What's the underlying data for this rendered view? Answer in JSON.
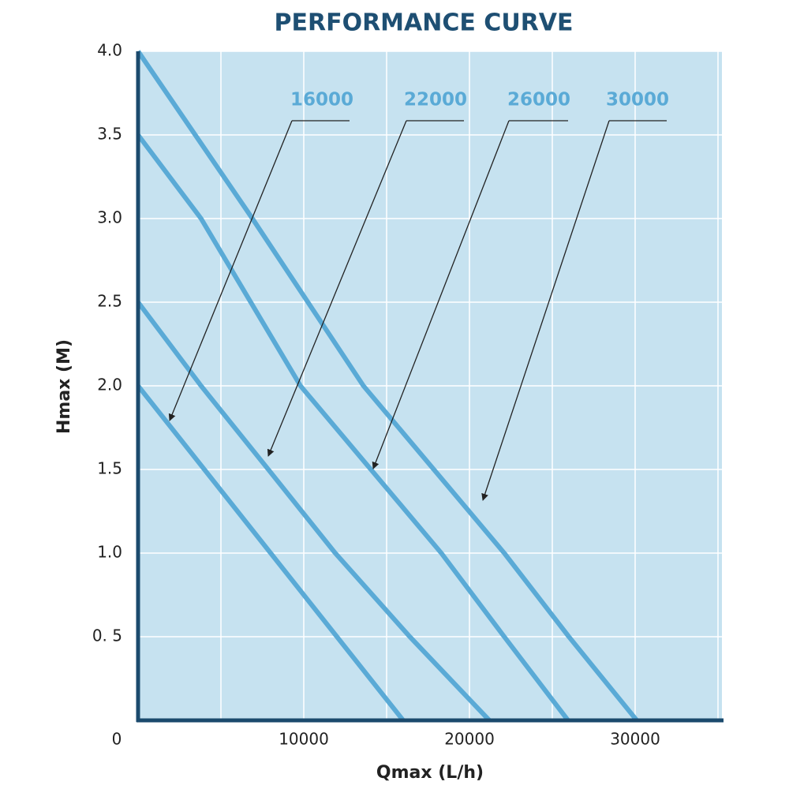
{
  "chart_data": {
    "type": "line",
    "title": "PERFORMANCE CURVE",
    "x_label": "Qmax (L/h)",
    "y_label": "Hmax (M)",
    "xlim": [
      0,
      35000
    ],
    "ylim": [
      0,
      4.0
    ],
    "xticks": [
      0,
      10000,
      20000,
      30000
    ],
    "xminorticks": [
      5000,
      15000,
      25000,
      35000
    ],
    "yticks": [
      {
        "value": 0.5,
        "label": "0. 5"
      },
      {
        "value": 1.0,
        "label": "1.0"
      },
      1.5,
      {
        "value": 2.0,
        "label": "2.0"
      },
      2.5,
      {
        "value": 3.0,
        "label": "3.0"
      },
      3.5,
      {
        "value": 4.0,
        "label": "4.0"
      }
    ],
    "grid": true,
    "background": "#c6e2f0",
    "axis_color": "#1b4a6d",
    "series": [
      {
        "name": "16000",
        "color": "#5aaad6",
        "x": [
          0,
          4000,
          8000,
          12000,
          16000
        ],
        "values": [
          2.0,
          1.5,
          1.0,
          0.5,
          0
        ]
      },
      {
        "name": "22000",
        "color": "#5aaad6",
        "x": [
          0,
          3800,
          7860,
          11900,
          16400,
          21200
        ],
        "values": [
          2.5,
          2.0,
          1.5,
          1.0,
          0.5,
          0
        ]
      },
      {
        "name": "26000",
        "color": "#5aaad6",
        "x": [
          0,
          3800,
          9800,
          18300,
          22100,
          25950
        ],
        "values": [
          3.5,
          3.0,
          2.0,
          1.0,
          0.5,
          0
        ]
      },
      {
        "name": "30000",
        "color": "#5aaad6",
        "x": [
          0,
          6900,
          13600,
          22100,
          26000,
          30100
        ],
        "values": [
          4.0,
          3.0,
          2.0,
          1.0,
          0.5,
          0
        ]
      }
    ]
  }
}
